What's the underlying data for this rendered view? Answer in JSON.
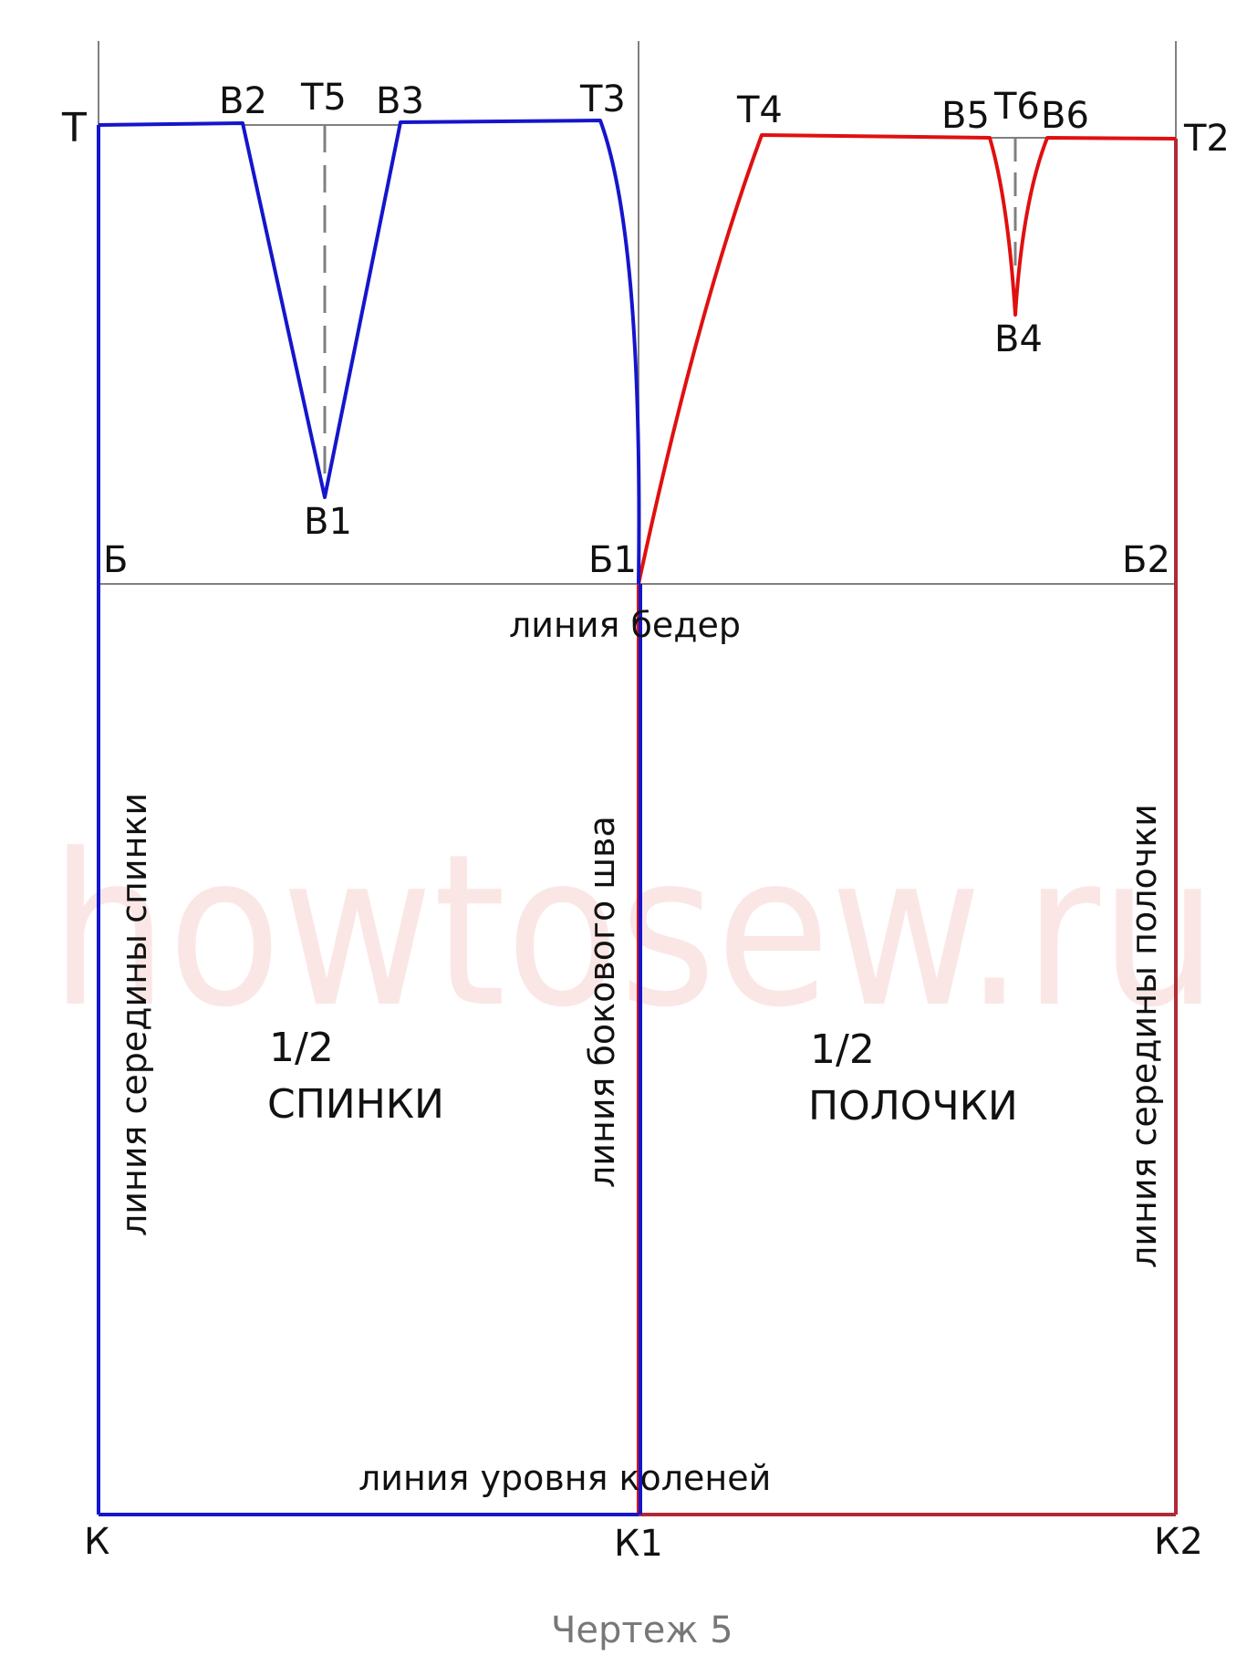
{
  "watermark": "howtosew.ru",
  "caption": "Чертеж 5",
  "colors": {
    "back": "#1515cc",
    "front": "#e01010",
    "front_edge": "#b02a35",
    "guide": "#808080",
    "watermark": "#fbe6e6"
  },
  "points": {
    "T": "Т",
    "T2": "Т2",
    "T3": "Т3",
    "T4": "Т4",
    "T5": "Т5",
    "T6": "Т6",
    "V1": "В1",
    "V2": "В2",
    "V3": "В3",
    "V4": "В4",
    "V5": "В5",
    "V6": "В6",
    "B": "Б",
    "B1": "Б1",
    "B2": "Б2",
    "K": "К",
    "K1": "К1",
    "K2": "К2"
  },
  "lines": {
    "hip": "линия бедер",
    "knee": "линия уровня коленей",
    "back_center": "линия середины спинки",
    "side_seam": "линия бокового шва",
    "front_center": "линия середины полочки"
  },
  "parts": {
    "back_fraction": "1/2",
    "back_name": "СПИНКИ",
    "front_fraction": "1/2",
    "front_name": "ПОЛОЧКИ"
  }
}
